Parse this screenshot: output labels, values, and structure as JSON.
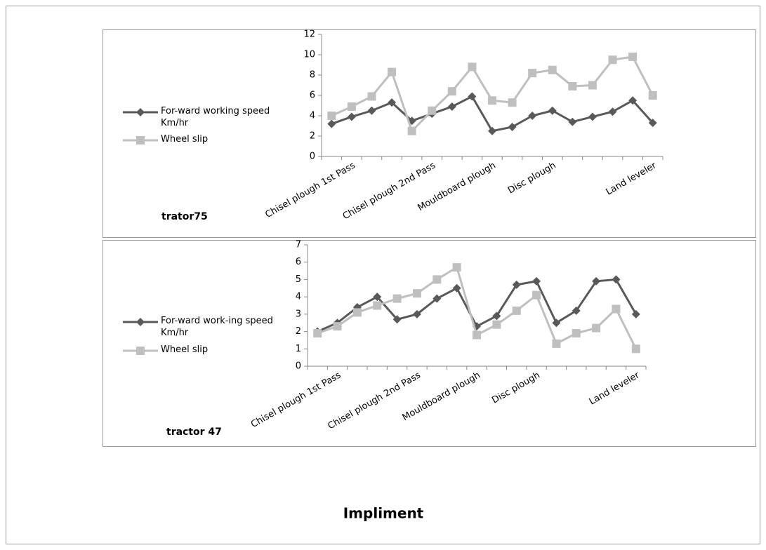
{
  "chart_data": [
    {
      "type": "line",
      "title": "trator75",
      "categories": [
        null,
        "Chisel plough 1st Pass",
        null,
        null,
        null,
        "Chisel plough 2nd Pass",
        null,
        null,
        "Mouldboard plough",
        null,
        null,
        "Disc plough",
        null,
        null,
        null,
        null,
        "Land leveler"
      ],
      "series": [
        {
          "name": "For-ward working speed Km/hr",
          "color": "#595959",
          "marker": "diamond",
          "values": [
            3.2,
            3.9,
            4.5,
            5.3,
            3.5,
            4.2,
            4.9,
            5.9,
            2.5,
            2.9,
            4.0,
            4.5,
            3.4,
            3.9,
            4.4,
            5.5,
            3.3
          ]
        },
        {
          "name": "Wheel slip",
          "color": "#bfbfbf",
          "marker": "square",
          "values": [
            4.0,
            4.9,
            5.9,
            8.3,
            2.5,
            4.5,
            6.4,
            8.8,
            5.5,
            5.3,
            8.2,
            8.5,
            6.9,
            7.0,
            9.5,
            9.8,
            6.0
          ]
        }
      ],
      "ylim": [
        0,
        12
      ],
      "yticks": [
        0,
        2,
        4,
        6,
        8,
        10,
        12
      ],
      "grid": false,
      "legend": "left"
    },
    {
      "type": "line",
      "title": "tractor 47",
      "categories": [
        null,
        "Chisel plough 1st Pass",
        null,
        null,
        null,
        "Chisel plough 2nd Pass",
        null,
        null,
        "Mouldboard plough",
        null,
        null,
        "Disc plough",
        null,
        null,
        null,
        null,
        "Land leveler"
      ],
      "series": [
        {
          "name": "For-ward work-ing speed Km/hr",
          "color": "#595959",
          "marker": "diamond",
          "values": [
            2.0,
            2.5,
            3.4,
            4.0,
            2.7,
            3.0,
            3.9,
            4.5,
            2.3,
            2.9,
            4.7,
            4.9,
            2.5,
            3.2,
            4.9,
            5.0,
            3.0
          ]
        },
        {
          "name": "Wheel slip",
          "color": "#bfbfbf",
          "marker": "square",
          "values": [
            1.9,
            2.3,
            3.1,
            3.5,
            3.9,
            4.2,
            5.0,
            5.7,
            1.8,
            2.4,
            3.2,
            4.1,
            1.3,
            1.9,
            2.2,
            3.3,
            1.0
          ]
        }
      ],
      "ylim": [
        0,
        7
      ],
      "yticks": [
        0,
        1,
        2,
        3,
        4,
        5,
        6,
        7
      ],
      "grid": false,
      "legend": "left"
    }
  ],
  "caption": "Impliment"
}
